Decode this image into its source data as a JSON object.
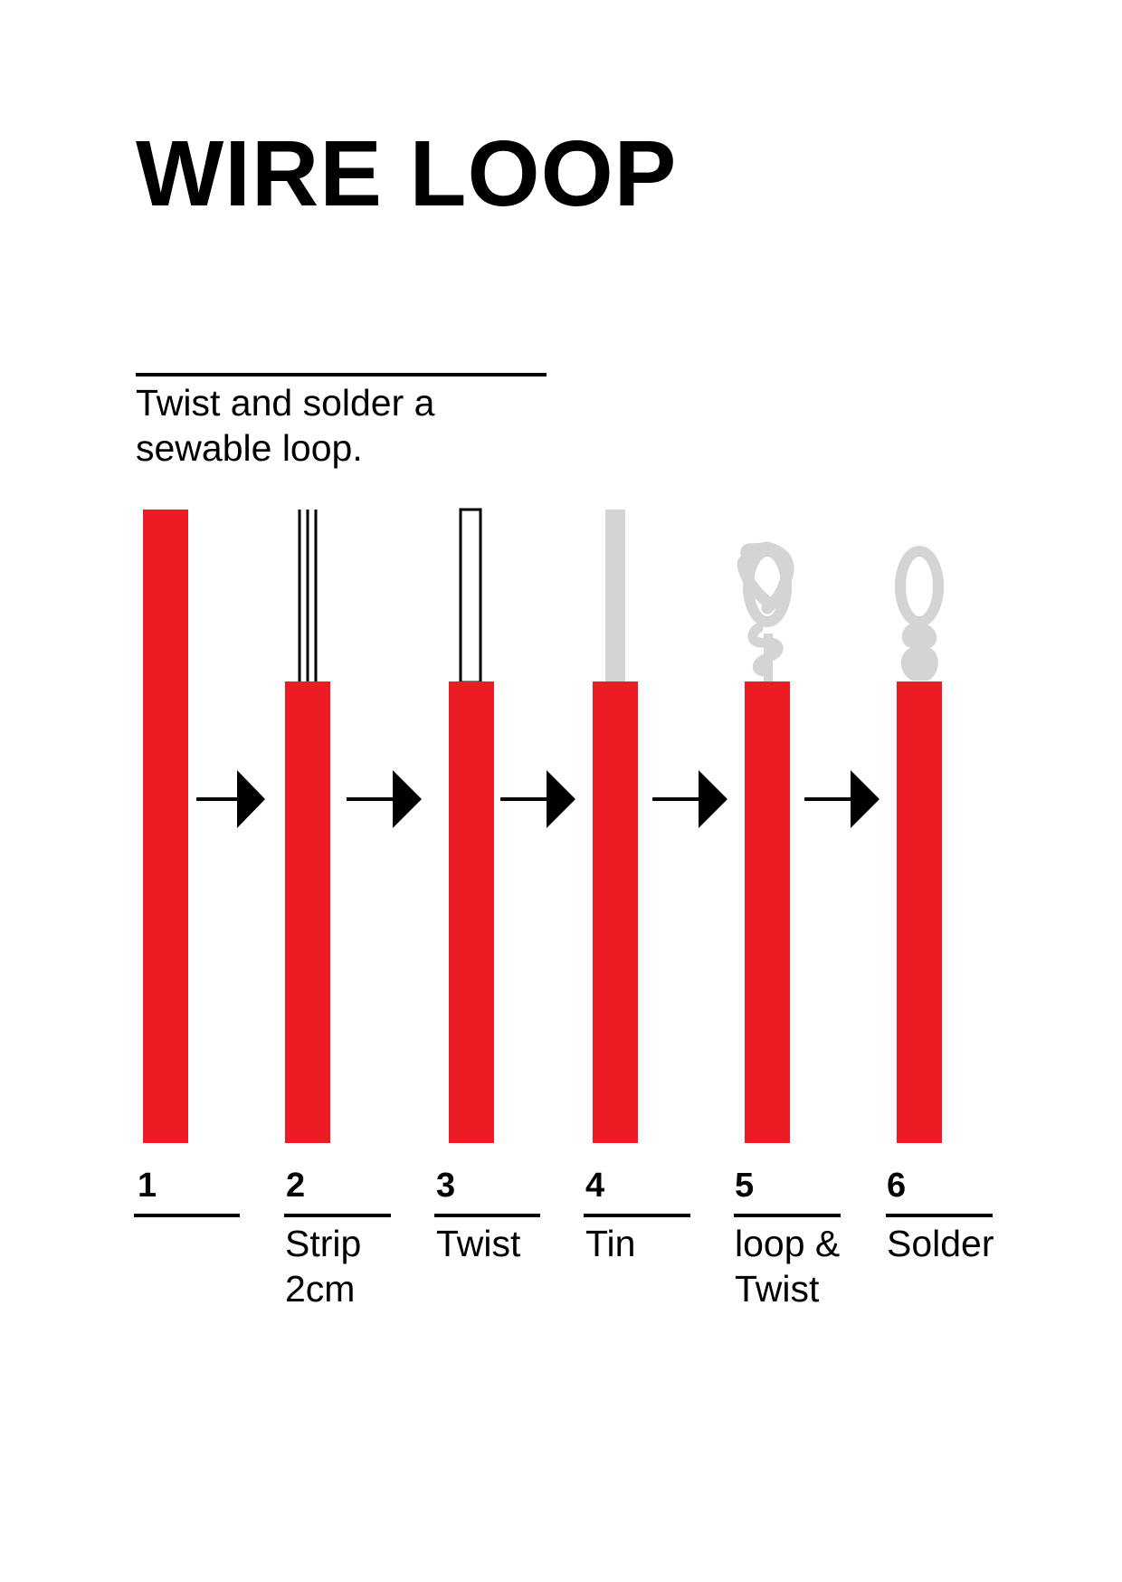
{
  "title": "WIRE LOOP",
  "subtitle": "Twist and solder a sewable loop.",
  "colors": {
    "insulation": "#ed1c24",
    "tinned_wire": "#d4d4d4",
    "ink": "#000000"
  },
  "steps": [
    {
      "number": "1",
      "label": ""
    },
    {
      "number": "2",
      "label": "Strip 2cm"
    },
    {
      "number": "3",
      "label": "Twist"
    },
    {
      "number": "4",
      "label": "Tin"
    },
    {
      "number": "5",
      "label": "loop & Twist"
    },
    {
      "number": "6",
      "label": "Solder"
    }
  ]
}
